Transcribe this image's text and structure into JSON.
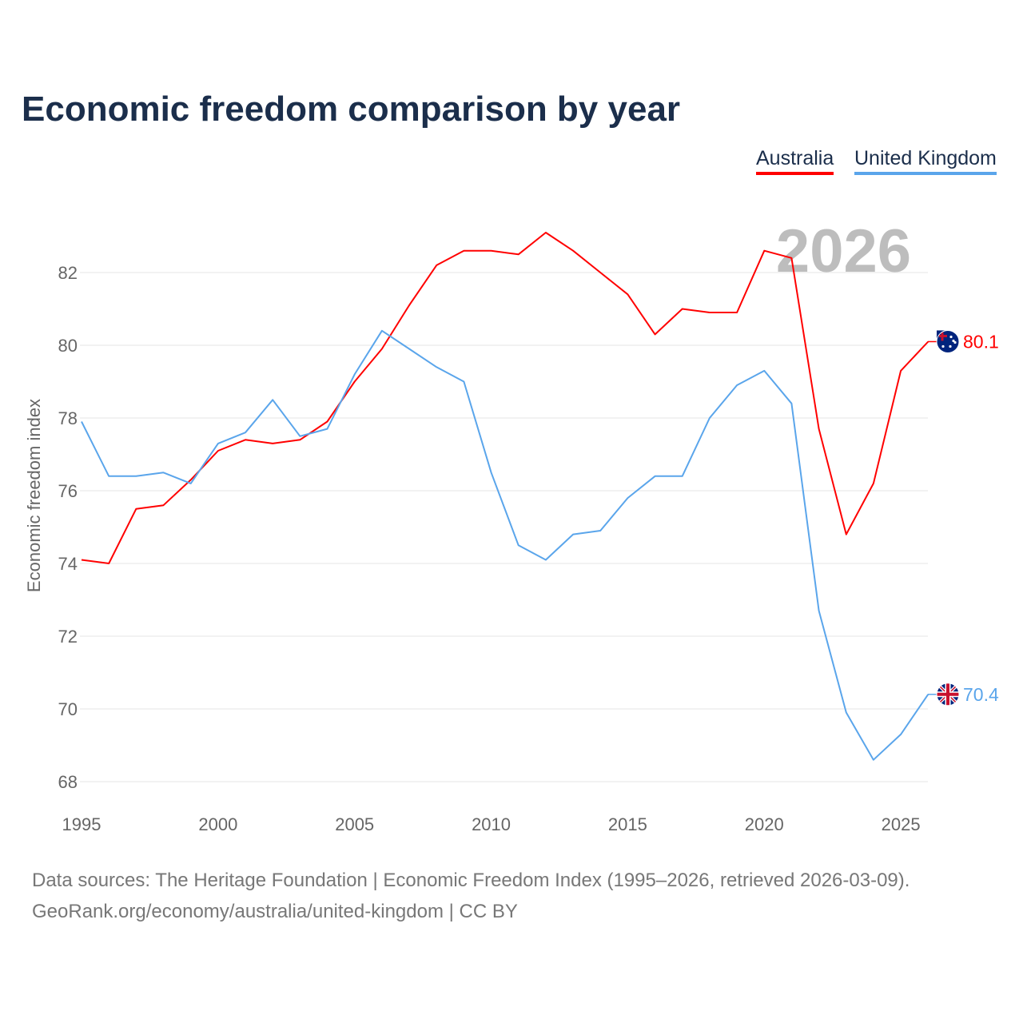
{
  "chart_data": {
    "type": "line",
    "title": "Economic freedom comparison by year",
    "xlabel": "",
    "ylabel": "Economic freedom index",
    "xlim": [
      1995,
      2026
    ],
    "ylim": [
      67.5,
      83.5
    ],
    "x_ticks": [
      "1995",
      "2000",
      "2005",
      "2010",
      "2015",
      "2020",
      "2025"
    ],
    "y_ticks": [
      "68",
      "70",
      "72",
      "74",
      "76",
      "78",
      "80",
      "82"
    ],
    "grid": true,
    "legend_placement": "top-right",
    "year_label": "2026",
    "x": [
      1995,
      1996,
      1997,
      1998,
      1999,
      2000,
      2001,
      2002,
      2003,
      2004,
      2005,
      2006,
      2007,
      2008,
      2009,
      2010,
      2011,
      2012,
      2013,
      2014,
      2015,
      2016,
      2017,
      2018,
      2019,
      2020,
      2021,
      2022,
      2023,
      2024,
      2025,
      2026
    ],
    "series": [
      {
        "name": "Australia",
        "color": "#ff0000",
        "end_label": "80.1",
        "values": [
          74.1,
          74.0,
          75.5,
          75.6,
          76.3,
          77.1,
          77.4,
          77.3,
          77.4,
          77.9,
          79.0,
          79.9,
          81.1,
          82.2,
          82.6,
          82.6,
          82.5,
          83.1,
          82.6,
          82.0,
          81.4,
          80.3,
          81.0,
          80.9,
          80.9,
          82.6,
          82.4,
          77.7,
          74.8,
          76.2,
          79.3,
          80.1
        ]
      },
      {
        "name": "United Kingdom",
        "color": "#5aa5eb",
        "end_label": "70.4",
        "values": [
          77.9,
          76.4,
          76.4,
          76.5,
          76.2,
          77.3,
          77.6,
          78.5,
          77.5,
          77.7,
          79.2,
          80.4,
          79.9,
          79.4,
          79.0,
          76.5,
          74.5,
          74.1,
          74.8,
          74.9,
          75.8,
          76.4,
          76.4,
          78.0,
          78.9,
          79.3,
          78.4,
          72.7,
          69.9,
          68.6,
          69.3,
          70.4
        ]
      }
    ]
  },
  "source": {
    "line1": "Data sources: The Heritage Foundation | Economic Freedom Index (1995–2026, retrieved 2026-03-09).",
    "line2": "GeoRank.org/economy/australia/united-kingdom | CC BY"
  }
}
